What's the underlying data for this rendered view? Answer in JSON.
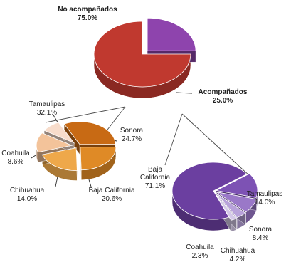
{
  "chart_data": [
    {
      "type": "pie",
      "title": "",
      "categories": [
        "No acompañados",
        "Acompañados"
      ],
      "values": [
        75.0,
        25.0
      ],
      "labels": [
        "No acompañados",
        "Acompañados"
      ],
      "value_labels": [
        "75.0%",
        "25.0%"
      ],
      "colors": [
        "#c0392f",
        "#8e44ad"
      ]
    },
    {
      "type": "pie",
      "title": "",
      "categories": [
        "Tamaulipas",
        "Sonora",
        "Baja California",
        "Chihuahua",
        "Coahuila"
      ],
      "values": [
        32.1,
        24.7,
        20.6,
        14.0,
        8.6
      ],
      "labels": [
        "Tamaulipas",
        "Sonora",
        "Baja California",
        "Chihuahua",
        "Coahuila"
      ],
      "value_labels": [
        "32.1%",
        "24.7%",
        "20.6%",
        "14.0%",
        "8.6%"
      ],
      "colors": [
        "#c86a14",
        "#df8a26",
        "#eea84a",
        "#f3c39a",
        "#f7dccb"
      ]
    },
    {
      "type": "pie",
      "title": "",
      "categories": [
        "Baja California",
        "Tamaulipas",
        "Sonora",
        "Chihuahua",
        "Coahuila"
      ],
      "values": [
        71.1,
        14.0,
        8.4,
        4.2,
        2.3
      ],
      "labels": [
        "Baja California",
        "Tamaulipas",
        "Sonora",
        "Chihuahua",
        "Coahuila"
      ],
      "value_labels": [
        "71.1%",
        "14.0%",
        "8.4%",
        "4.2%",
        "2.3%"
      ],
      "colors": [
        "#6b3fa0",
        "#7d52b4",
        "#9a78c8",
        "#b8a2da",
        "#d4c8e8"
      ]
    }
  ]
}
